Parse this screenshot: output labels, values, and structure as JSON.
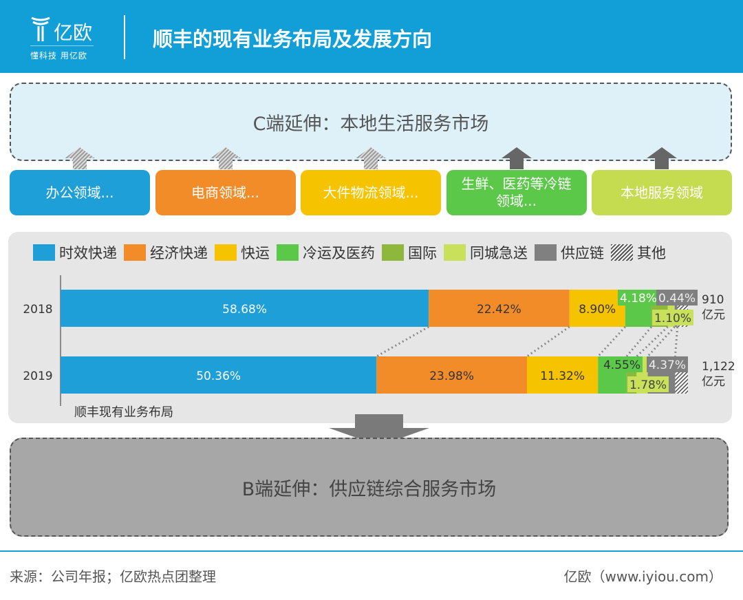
{
  "header": {
    "logo_text": "亿欧",
    "logo_slogan": "懂科技 用亿欧",
    "title": "顺丰的现有业务布局及发展方向"
  },
  "c_end": {
    "label": "C端延伸：本地生活服务市场"
  },
  "domains": [
    {
      "label": "办公领域...",
      "color": "#1f9fd8",
      "arrow": "hatched-up-arrow"
    },
    {
      "label": "电商领域...",
      "color": "#f28c28",
      "arrow": "hatched-up-arrow"
    },
    {
      "label": "大件物流领域...",
      "color": "#f6c300",
      "arrow": "hatched-up-arrow"
    },
    {
      "label": "生鲜、医药等冷链领域...",
      "color": "#5cc84a",
      "arrow": "solid-up-arrow"
    },
    {
      "label": "本地服务领域",
      "color": "#c5dc50",
      "arrow": "solid-up-arrow"
    }
  ],
  "b_end": {
    "label": "B端延伸：供应链综合服务市场"
  },
  "footer": {
    "source": "来源：公司年报；亿欧热点团整理",
    "site": "亿欧（www.iyiou.com）"
  },
  "chart_data": {
    "type": "bar",
    "orientation": "horizontal-stacked-100",
    "xlabel": "顺丰现有业务布局",
    "categories": [
      "2018",
      "2019"
    ],
    "totals": [
      "910\n亿元",
      "1,122\n亿元"
    ],
    "legend_placement": "top",
    "series": [
      {
        "name": "时效快递",
        "color": "#1f9fd8",
        "values": [
          58.68,
          50.36
        ],
        "labels": [
          "58.68%",
          "50.36%"
        ]
      },
      {
        "name": "经济快递",
        "color": "#f28c28",
        "values": [
          22.42,
          23.98
        ],
        "labels": [
          "22.42%",
          "23.98%"
        ]
      },
      {
        "name": "快运",
        "color": "#f6c300",
        "values": [
          8.9,
          11.32
        ],
        "labels": [
          "8.90%",
          "11.32%"
        ]
      },
      {
        "name": "冷运及医药",
        "color": "#5cc84a",
        "values": [
          4.18,
          4.55
        ],
        "labels": [
          "4.18%",
          "4.55%"
        ]
      },
      {
        "name": "国际",
        "color": "#8db83c",
        "values": [
          2.6,
          1.6
        ],
        "labels": [
          "",
          ""
        ]
      },
      {
        "name": "同城急送",
        "color": "#c8e05a",
        "values": [
          1.1,
          1.78
        ],
        "labels": [
          "1.10%",
          "1.78%"
        ]
      },
      {
        "name": "供应链",
        "color": "#808080",
        "values": [
          0.44,
          4.37
        ],
        "labels": [
          "0.44%",
          "4.37%"
        ]
      },
      {
        "name": "其他",
        "color": "hatched",
        "values": [
          1.68,
          2.04
        ],
        "labels": [
          "",
          ""
        ]
      }
    ]
  }
}
